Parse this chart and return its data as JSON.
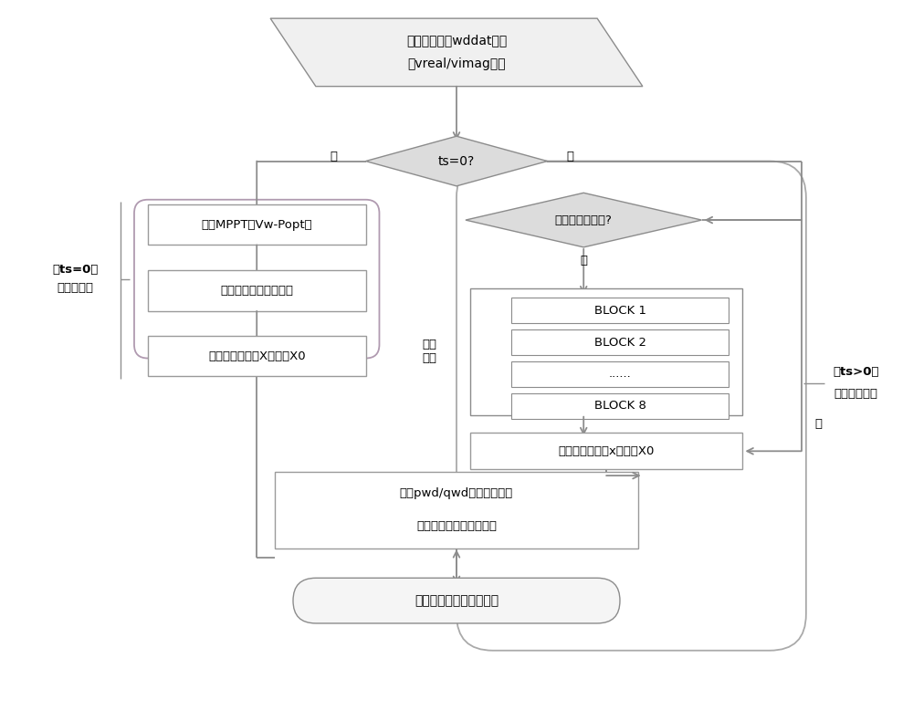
{
  "bg_color": "#ffffff",
  "arrow_color": "#8c8c8c",
  "box_border_color": "#8c8c8c",
  "text_color": "#000000",
  "para_fill": "#f0f0f0",
  "para_edge": "#8c8c8c",
  "diamond_fill": "#dcdcdc",
  "diamond_edge": "#8c8c8c",
  "rect_fill": "#ffffff",
  "rect_edge": "#9a9a9a",
  "left_group_edge": "#b09ab0",
  "block_outer_edge": "#8c8c8c",
  "block_inner_edge": "#8c8c8c",
  "right_curve_edge": "#aaaaaa",
  "bot_fill": "#f5f5f5",
  "bot_edge": "#8c8c8c",
  "top_line1": "从主程序读取wddat参数",
  "top_line2": "和vreal/vimag电压",
  "d1_text": "ts=0?",
  "d1_yes": "是",
  "d1_no": "否",
  "box1_text": "建立MPPT的Vw-Popt表",
  "box2_text": "计算各个模块初始状态",
  "box3_text": "将初始状态变量X保存为X0",
  "d2_text": "完成一个大步长?",
  "d2_no": "否",
  "d2_yes": "是",
  "num_int_label": "数值\n积分",
  "block1": "BLOCK 1",
  "block2": "BLOCK 2",
  "block3": "......",
  "block4": "BLOCK 8",
  "box4_text": "将当前状态变量x保存为X0",
  "box5_text": "输出pwd/qwd供主程序调用",
  "box6_text": "输出主要变量到日志文件",
  "bot_text": "返回主程序等待下次调用",
  "label_left_line1": "【ts=0】",
  "label_left_line2": "初始化阶段",
  "label_right_line1": "【ts>0】",
  "label_right_line2": "数值求解阶段"
}
